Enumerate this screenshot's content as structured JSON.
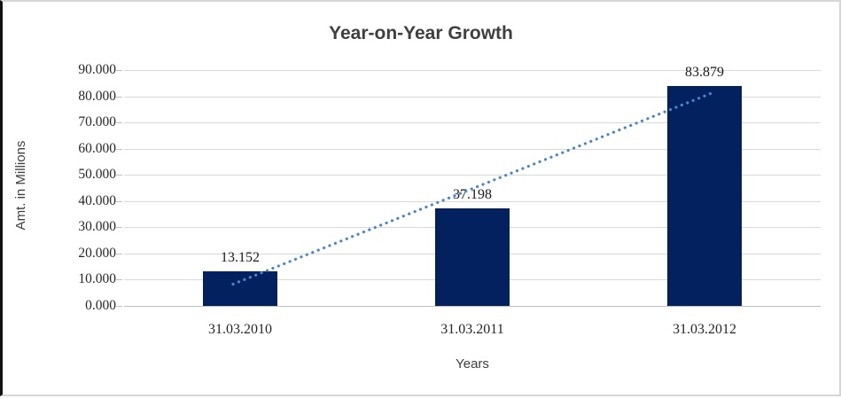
{
  "chart": {
    "title": "Year-on-Year Growth",
    "y_axis_title": "Amt. in Millions",
    "x_axis_title": "Years"
  },
  "chart_data": {
    "type": "bar",
    "title": "Year-on-Year Growth",
    "xlabel": "Years",
    "ylabel": "Amt. in Millions",
    "categories": [
      "31.03.2010",
      "31.03.2011",
      "31.03.2012"
    ],
    "values": [
      13.152,
      37.198,
      83.879
    ],
    "data_labels": [
      "13.152",
      "37.198",
      "83.879"
    ],
    "ylim": [
      0,
      90
    ],
    "ytick_step": 10,
    "ytick_labels": [
      "0.000",
      "10.000",
      "20.000",
      "30.000",
      "40.000",
      "50.000",
      "60.000",
      "70.000",
      "80.000",
      "90.000"
    ],
    "grid": true,
    "legend": false,
    "trendline": {
      "type": "linear",
      "style": "round-dot"
    },
    "colors": {
      "bar": "#03215e",
      "gridline": "#d9d9d9",
      "axis_line": "#bfbfbf",
      "trendline": "#4c86c8",
      "title_text": "#3f3f3f",
      "label_text": "#262626"
    }
  }
}
